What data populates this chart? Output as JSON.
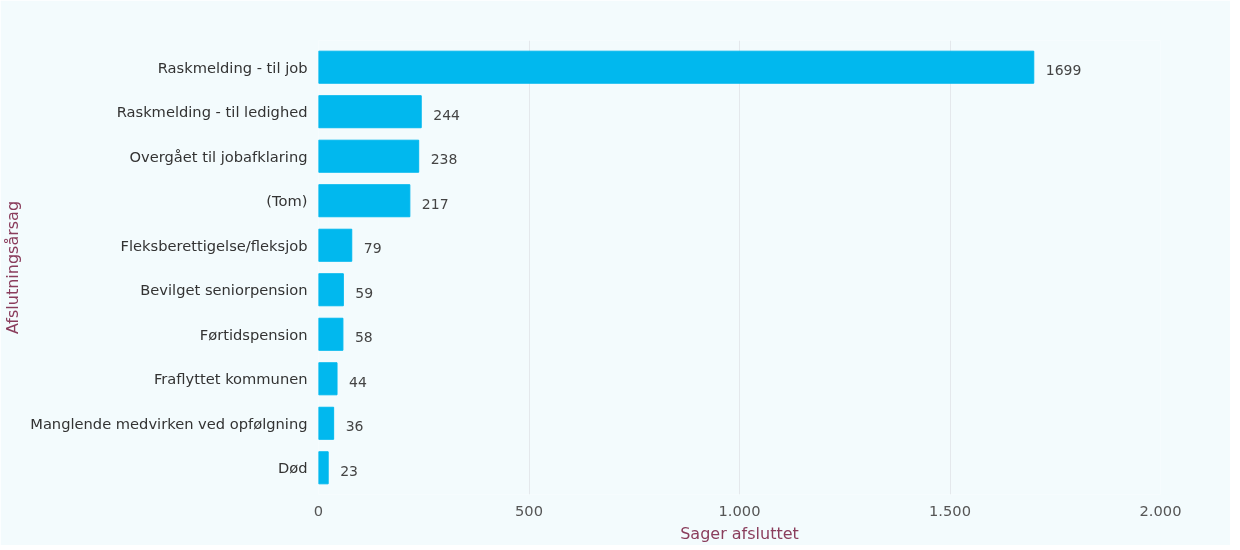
{
  "chart_data": {
    "type": "bar",
    "orientation": "horizontal",
    "xlabel": "Sager afsluttet",
    "ylabel": "Afslutningsårsag",
    "categories": [
      "Raskmelding - til job",
      "Raskmelding - til ledighed",
      "Overgået til jobafklaring",
      "(Tom)",
      "Fleksberettigelse/fleksjob",
      "Bevilget seniorpension",
      "Førtidspension",
      "Fraflyttet kommunen",
      "Manglende medvirken ved opfølgning",
      "Død"
    ],
    "values": [
      1699,
      244,
      238,
      217,
      79,
      59,
      58,
      44,
      36,
      23
    ],
    "color": "#01b8ee",
    "data_labels": true,
    "xlim": [
      0,
      2000
    ],
    "xticks": [
      0,
      500,
      {
        "value": 1000,
        "label": "1.000"
      },
      {
        "value": 1500,
        "label": "1.500"
      },
      {
        "value": 2000,
        "label": "2.000"
      }
    ],
    "grid": "x"
  }
}
